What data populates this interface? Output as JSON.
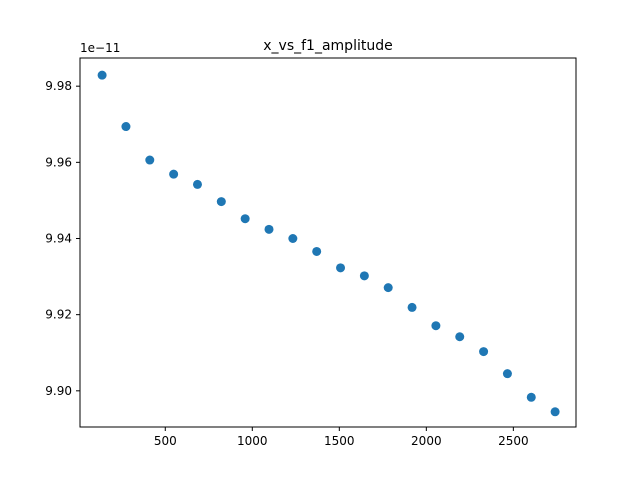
{
  "chart_data": {
    "type": "scatter",
    "title": "x_vs_f1_amplitude",
    "xlabel": "",
    "ylabel": "",
    "y_offset_label": "1e−11",
    "xlim": [
      10,
      2860
    ],
    "ylim": [
      9.8905,
      9.9874
    ],
    "x_ticks": [
      500,
      1000,
      1500,
      2000,
      2500
    ],
    "x_tick_labels": [
      "500",
      "1000",
      "1500",
      "2000",
      "2500"
    ],
    "y_ticks": [
      9.9,
      9.92,
      9.94,
      9.96,
      9.98
    ],
    "y_tick_labels": [
      "9.90",
      "9.92",
      "9.94",
      "9.96",
      "9.98"
    ],
    "grid": false,
    "marker_color": "#1f77b4",
    "x": [
      137,
      274,
      411,
      548,
      685,
      822,
      959,
      1096,
      1233,
      1370,
      1507,
      1644,
      1781,
      1918,
      2055,
      2192,
      2329,
      2466,
      2603,
      2740
    ],
    "y": [
      9.9829,
      9.9694,
      9.9606,
      9.9569,
      9.9542,
      9.9497,
      9.9452,
      9.9424,
      9.94,
      9.9366,
      9.9323,
      9.9302,
      9.9271,
      9.9219,
      9.9171,
      9.9142,
      9.9103,
      9.9045,
      9.8983,
      9.8945
    ]
  }
}
